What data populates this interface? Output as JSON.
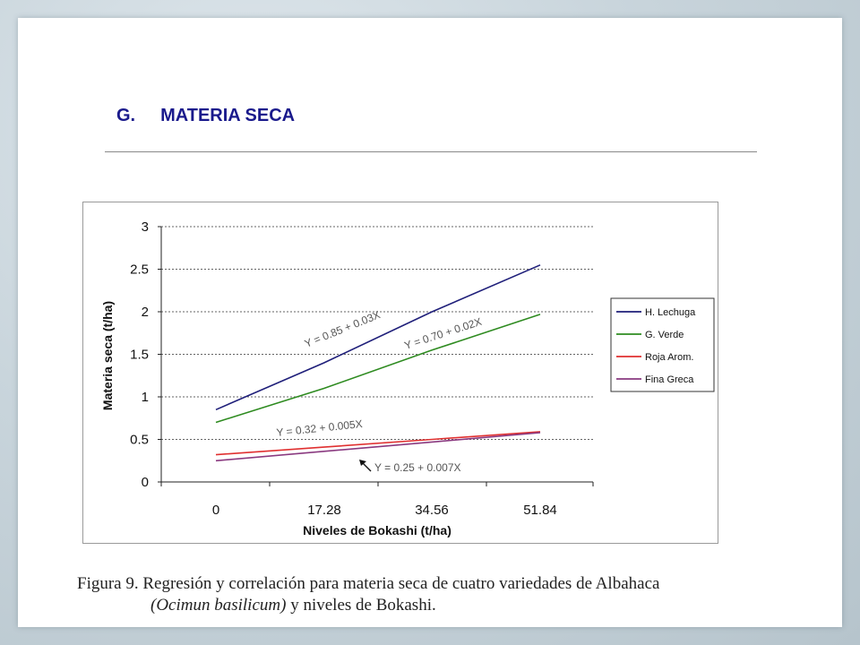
{
  "heading": {
    "letter": "G.",
    "title": "MATERIA SECA"
  },
  "chart_data": {
    "type": "line",
    "xlabel": "Niveles de Bokashi (t/ha)",
    "ylabel": "Materia seca (t/ha)",
    "categories": [
      "0",
      "17.28",
      "34.56",
      "51.84"
    ],
    "x": [
      0,
      17.28,
      34.56,
      51.84
    ],
    "ylim": [
      0,
      3
    ],
    "yticks": [
      "0",
      "0.5",
      "1",
      "1.5",
      "2",
      "2.5",
      "3"
    ],
    "grid": "horizontal dashed",
    "legend_position": "right",
    "series": [
      {
        "name": "H. Lechuga",
        "color": "#1f1f7a",
        "values": [
          0.85,
          1.4,
          2.0,
          2.55
        ]
      },
      {
        "name": "G. Verde",
        "color": "#2e8b20",
        "values": [
          0.7,
          1.1,
          1.55,
          1.97
        ]
      },
      {
        "name": "Roja Arom.",
        "color": "#e03030",
        "values": [
          0.32,
          0.41,
          0.5,
          0.59
        ]
      },
      {
        "name": "Fina Greca",
        "color": "#8a3a80",
        "values": [
          0.25,
          0.36,
          0.47,
          0.58
        ]
      }
    ],
    "annotations": [
      {
        "text": "Y = 0.85 + 0.03X"
      },
      {
        "text": "Y = 0.70 + 0.02X"
      },
      {
        "text": "Y = 0.32 + 0.005X"
      },
      {
        "text": "Y = 0.25 + 0.007X"
      }
    ]
  },
  "caption": {
    "line1": "Figura 9. Regresión y correlación para materia seca de cuatro variedades de Albahaca",
    "species": "(Ocimun basilicum)",
    "line2_rest": "  y niveles de Bokashi."
  }
}
